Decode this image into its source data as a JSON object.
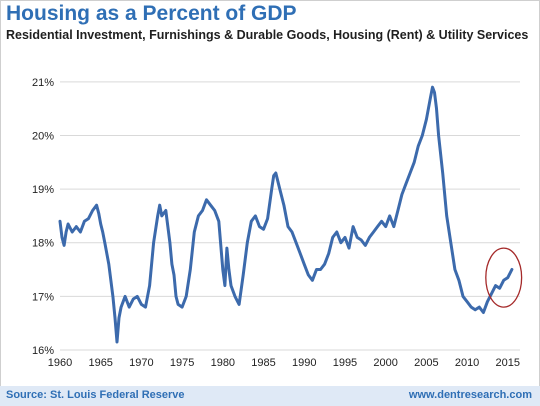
{
  "header": {
    "title": "Housing as a Percent of GDP",
    "subtitle": "Residential Investment, Furnishings & Durable Goods, Housing (Rent) & Utility Services"
  },
  "footer": {
    "source": "Source: St. Louis Federal Reserve",
    "brand": "www.dentresearch.com"
  },
  "colors": {
    "line": "#3c6aac",
    "grid": "#d9d9d9",
    "annotation_circle": "#a52a2a",
    "footer_bg": "#dfe9f6"
  },
  "chart_data": {
    "type": "line",
    "title": "Housing as a Percent of GDP",
    "subtitle": "Residential Investment, Furnishings & Durable Goods, Housing (Rent) & Utility Services",
    "xlabel": "",
    "ylabel": "",
    "xlim": [
      1960,
      2016.5
    ],
    "ylim": [
      16,
      21.5
    ],
    "x_ticks": [
      1960,
      1965,
      1970,
      1975,
      1980,
      1985,
      1990,
      1995,
      2000,
      2005,
      2010,
      2015
    ],
    "x_tick_labels": [
      "1960",
      "1965",
      "1970",
      "1975",
      "1980",
      "1985",
      "1990",
      "1995",
      "2000",
      "2005",
      "2010",
      "2015"
    ],
    "y_ticks": [
      16,
      17,
      18,
      19,
      20,
      21
    ],
    "y_tick_labels": [
      "16%",
      "17%",
      "18%",
      "19%",
      "20%",
      "21%"
    ],
    "grid": "horizontal",
    "annotation": {
      "type": "ellipse",
      "center": [
        2014.5,
        17.35
      ],
      "radius_years": 2.2,
      "radius_pct": 0.55
    },
    "series": [
      {
        "name": "",
        "x": [
          1960.0,
          1960.25,
          1960.5,
          1960.75,
          1961.0,
          1961.5,
          1962.0,
          1962.5,
          1963.0,
          1963.5,
          1964.0,
          1964.5,
          1964.75,
          1965.0,
          1965.25,
          1965.5,
          1966.0,
          1966.5,
          1966.75,
          1967.0,
          1967.25,
          1967.5,
          1968.0,
          1968.5,
          1969.0,
          1969.5,
          1970.0,
          1970.5,
          1971.0,
          1971.5,
          1972.0,
          1972.25,
          1972.5,
          1973.0,
          1973.5,
          1973.75,
          1974.0,
          1974.25,
          1974.5,
          1975.0,
          1975.5,
          1976.0,
          1976.5,
          1977.0,
          1977.5,
          1978.0,
          1978.5,
          1979.0,
          1979.5,
          1980.0,
          1980.25,
          1980.5,
          1980.75,
          1981.0,
          1981.5,
          1982.0,
          1982.5,
          1983.0,
          1983.5,
          1984.0,
          1984.5,
          1985.0,
          1985.5,
          1986.0,
          1986.25,
          1986.5,
          1987.0,
          1987.5,
          1988.0,
          1988.5,
          1989.0,
          1989.5,
          1990.0,
          1990.5,
          1991.0,
          1991.5,
          1992.0,
          1992.5,
          1993.0,
          1993.5,
          1994.0,
          1994.5,
          1995.0,
          1995.5,
          1996.0,
          1996.5,
          1997.0,
          1997.5,
          1998.0,
          1998.5,
          1999.0,
          1999.5,
          2000.0,
          2000.5,
          2001.0,
          2001.5,
          2002.0,
          2002.5,
          2003.0,
          2003.5,
          2004.0,
          2004.5,
          2005.0,
          2005.5,
          2005.75,
          2006.0,
          2006.25,
          2006.5,
          2007.0,
          2007.5,
          2008.0,
          2008.5,
          2009.0,
          2009.5,
          2010.0,
          2010.5,
          2011.0,
          2011.5,
          2012.0,
          2012.5,
          2013.0,
          2013.5,
          2014.0,
          2014.5,
          2015.0,
          2015.5
        ],
        "y": [
          18.4,
          18.1,
          17.95,
          18.2,
          18.35,
          18.2,
          18.3,
          18.2,
          18.4,
          18.45,
          18.6,
          18.7,
          18.55,
          18.35,
          18.2,
          18.0,
          17.6,
          17.0,
          16.6,
          16.15,
          16.6,
          16.8,
          17.0,
          16.8,
          16.95,
          17.0,
          16.85,
          16.8,
          17.2,
          18.0,
          18.5,
          18.7,
          18.5,
          18.6,
          18.0,
          17.6,
          17.4,
          17.0,
          16.85,
          16.8,
          17.0,
          17.5,
          18.2,
          18.5,
          18.6,
          18.8,
          18.7,
          18.6,
          18.4,
          17.5,
          17.2,
          17.9,
          17.5,
          17.2,
          17.0,
          16.85,
          17.4,
          18.0,
          18.4,
          18.5,
          18.3,
          18.25,
          18.45,
          19.0,
          19.25,
          19.3,
          19.0,
          18.7,
          18.3,
          18.2,
          18.0,
          17.8,
          17.6,
          17.4,
          17.3,
          17.5,
          17.5,
          17.6,
          17.8,
          18.1,
          18.2,
          18.0,
          18.1,
          17.9,
          18.3,
          18.1,
          18.05,
          17.95,
          18.1,
          18.2,
          18.3,
          18.4,
          18.3,
          18.5,
          18.3,
          18.6,
          18.9,
          19.1,
          19.3,
          19.5,
          19.8,
          20.0,
          20.3,
          20.7,
          20.9,
          20.8,
          20.5,
          20.0,
          19.3,
          18.5,
          18.0,
          17.5,
          17.3,
          17.0,
          16.9,
          16.8,
          16.75,
          16.8,
          16.7,
          16.9,
          17.05,
          17.2,
          17.15,
          17.3,
          17.35,
          17.5
        ]
      }
    ]
  }
}
